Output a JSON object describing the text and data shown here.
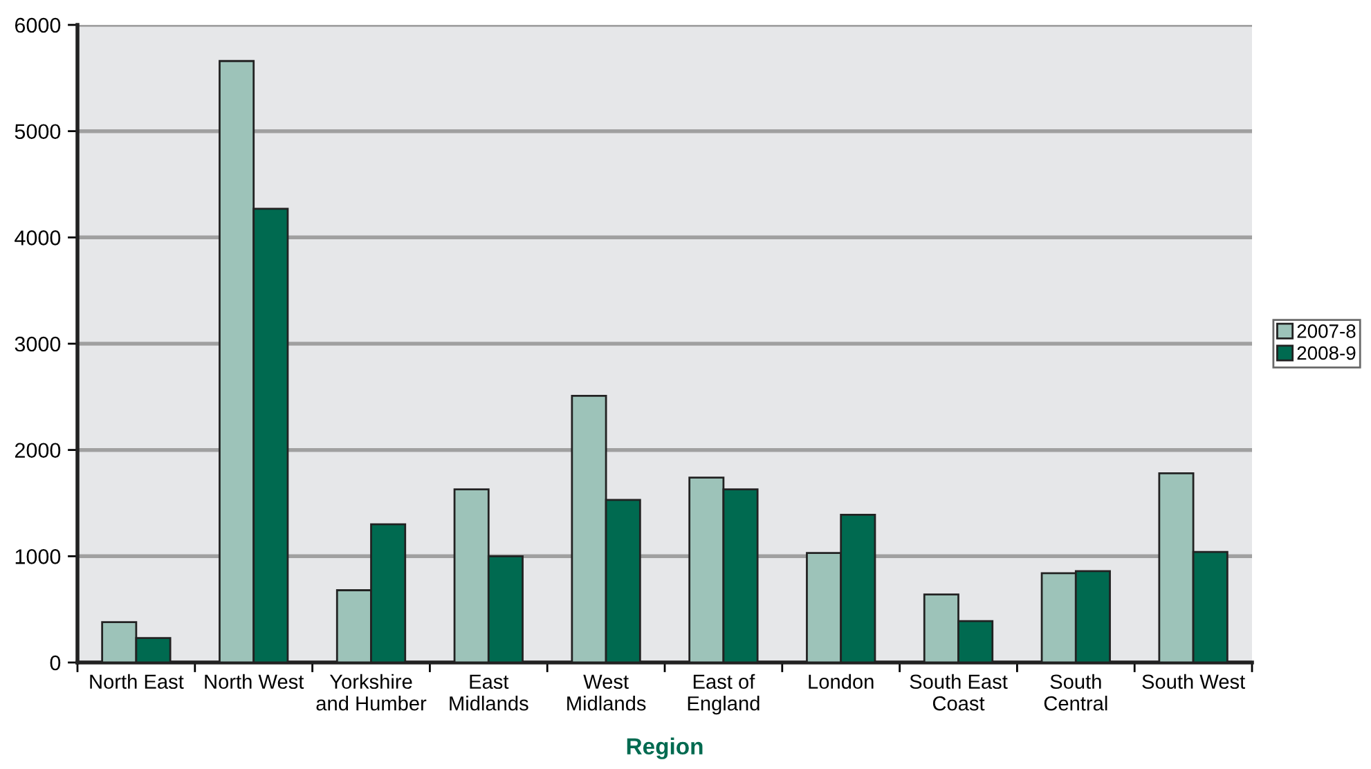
{
  "chart_data": {
    "type": "bar",
    "xlabel": "Region",
    "categories": [
      "North East",
      "North West",
      "Yorkshire\nand Humber",
      "East\nMidlands",
      "West\nMidlands",
      "East of\nEngland",
      "London",
      "South East\nCoast",
      "South\nCentral",
      "South West"
    ],
    "series": [
      {
        "name": "2007-8",
        "color": "#9dc3b9",
        "values": [
          380,
          5660,
          680,
          1630,
          2510,
          1740,
          1030,
          640,
          840,
          1780
        ]
      },
      {
        "name": "2008-9",
        "color": "#006a50",
        "values": [
          230,
          4270,
          1300,
          1000,
          1530,
          1630,
          1390,
          390,
          860,
          1040
        ]
      }
    ],
    "ylim": [
      0,
      6000
    ],
    "yticks": [
      0,
      1000,
      2000,
      3000,
      4000,
      5000,
      6000
    ],
    "grid": "y",
    "legend": "right"
  }
}
